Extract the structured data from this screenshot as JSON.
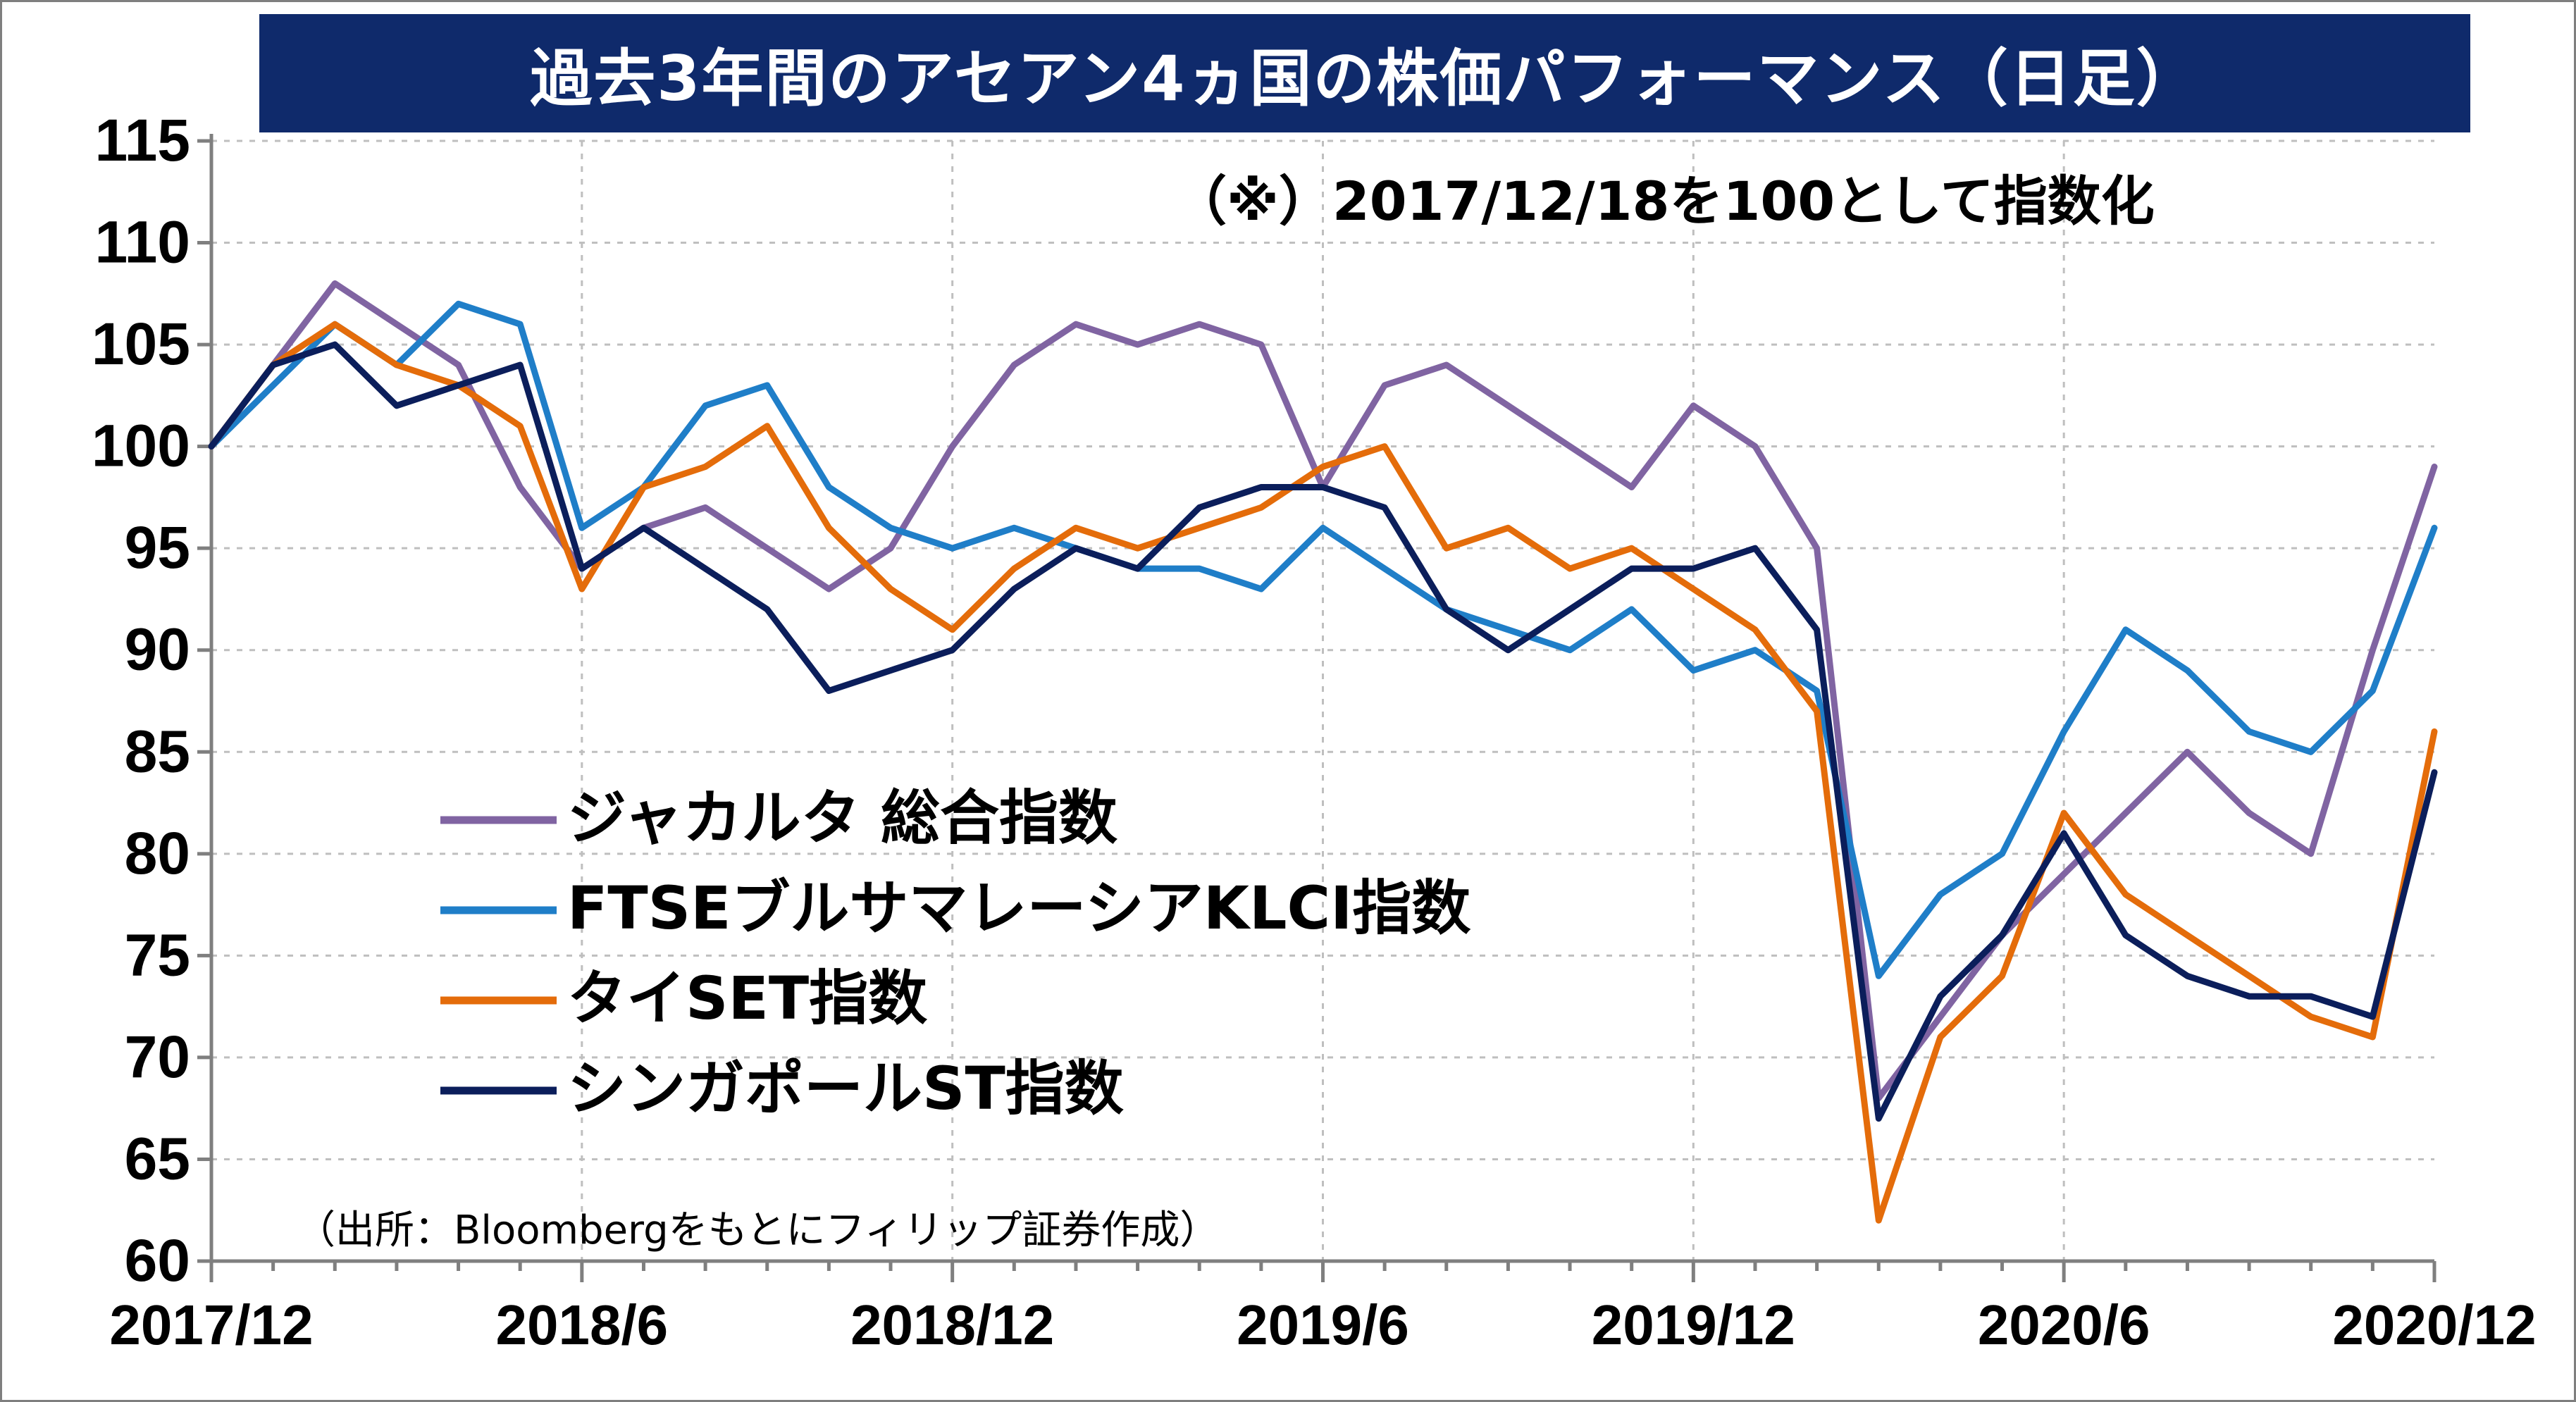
{
  "title": "過去3年間のアセアン4ヵ国の株価パフォーマンス（日足）",
  "note": "（※）2017/12/18を100として指数化",
  "source": "（出所：Bloombergをもとにフィリップ証券作成）",
  "chart_data": {
    "type": "line",
    "ylim": [
      60,
      115
    ],
    "yticks": [
      "115",
      "110",
      "105",
      "100",
      "95",
      "90",
      "85",
      "80",
      "75",
      "70",
      "65",
      "60"
    ],
    "xtick_labels": [
      "2017/12",
      "2018/6",
      "2018/12",
      "2019/6",
      "2019/12",
      "2020/6",
      "2020/12"
    ],
    "x_months": [
      "2017-12",
      "2018-01",
      "2018-02",
      "2018-03",
      "2018-04",
      "2018-05",
      "2018-06",
      "2018-07",
      "2018-08",
      "2018-09",
      "2018-10",
      "2018-11",
      "2018-12",
      "2019-01",
      "2019-02",
      "2019-03",
      "2019-04",
      "2019-05",
      "2019-06",
      "2019-07",
      "2019-08",
      "2019-09",
      "2019-10",
      "2019-11",
      "2019-12",
      "2020-01",
      "2020-02",
      "2020-03",
      "2020-04",
      "2020-05",
      "2020-06",
      "2020-07",
      "2020-08",
      "2020-09",
      "2020-10",
      "2020-11",
      "2020-12"
    ],
    "series": [
      {
        "name": "ジャカルタ 総合指数",
        "color": "#8064a2",
        "values": [
          100,
          104,
          108,
          106,
          104,
          98,
          94,
          96,
          97,
          95,
          93,
          95,
          100,
          104,
          106,
          105,
          106,
          105,
          98,
          103,
          104,
          102,
          100,
          98,
          102,
          100,
          95,
          68,
          72,
          76,
          79,
          82,
          85,
          82,
          80,
          90,
          99
        ]
      },
      {
        "name": "FTSEブルサマレーシアKLCI指数",
        "color": "#1f7ec8",
        "values": [
          100,
          103,
          106,
          104,
          107,
          106,
          96,
          98,
          102,
          103,
          98,
          96,
          95,
          96,
          95,
          94,
          94,
          93,
          96,
          94,
          92,
          91,
          90,
          92,
          89,
          90,
          88,
          74,
          78,
          80,
          86,
          91,
          89,
          86,
          85,
          88,
          96
        ]
      },
      {
        "name": "タイSET指数",
        "color": "#e46c0a",
        "values": [
          100,
          104,
          106,
          104,
          103,
          101,
          93,
          98,
          99,
          101,
          96,
          93,
          91,
          94,
          96,
          95,
          96,
          97,
          99,
          100,
          95,
          96,
          94,
          95,
          93,
          91,
          87,
          62,
          71,
          74,
          82,
          78,
          76,
          74,
          72,
          71,
          86
        ]
      },
      {
        "name": "シンガポールST指数",
        "color": "#0b1e5b",
        "values": [
          100,
          104,
          105,
          102,
          103,
          104,
          94,
          96,
          94,
          92,
          88,
          89,
          90,
          93,
          95,
          94,
          97,
          98,
          98,
          97,
          92,
          90,
          92,
          94,
          94,
          95,
          91,
          67,
          73,
          76,
          81,
          76,
          74,
          73,
          73,
          72,
          84
        ]
      }
    ]
  }
}
